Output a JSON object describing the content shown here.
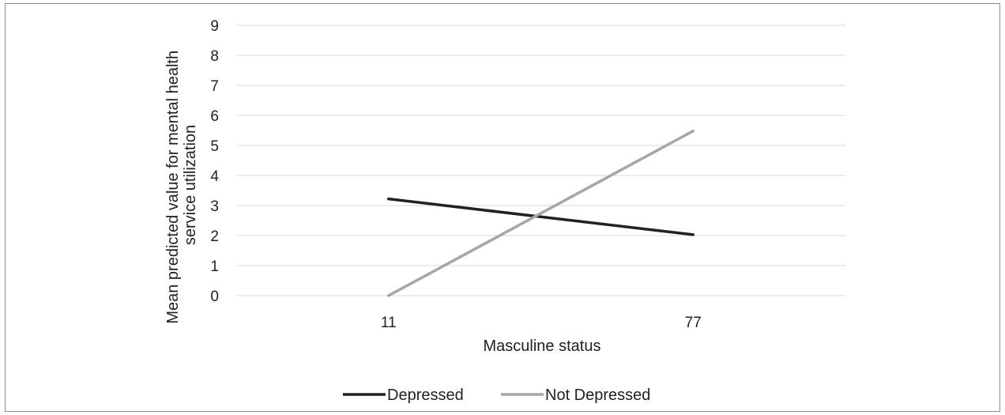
{
  "chart_data": {
    "type": "line",
    "categories": [
      "11",
      "77"
    ],
    "series": [
      {
        "name": "Depressed",
        "values": [
          3.22,
          2.03
        ],
        "color": "#222222"
      },
      {
        "name": "Not Depressed",
        "values": [
          0.0,
          5.48
        ],
        "color": "#a6a6a6"
      }
    ],
    "xlabel": "Masculine status",
    "ylabel_lines": [
      "Mean predicted value for mental health",
      "service utilization"
    ],
    "ylim": [
      0,
      9
    ],
    "yticks": [
      0,
      1,
      2,
      3,
      4,
      5,
      6,
      7,
      8,
      9
    ],
    "grid": true,
    "gridColor": "#d9d9d9",
    "legend_position": "bottom"
  }
}
